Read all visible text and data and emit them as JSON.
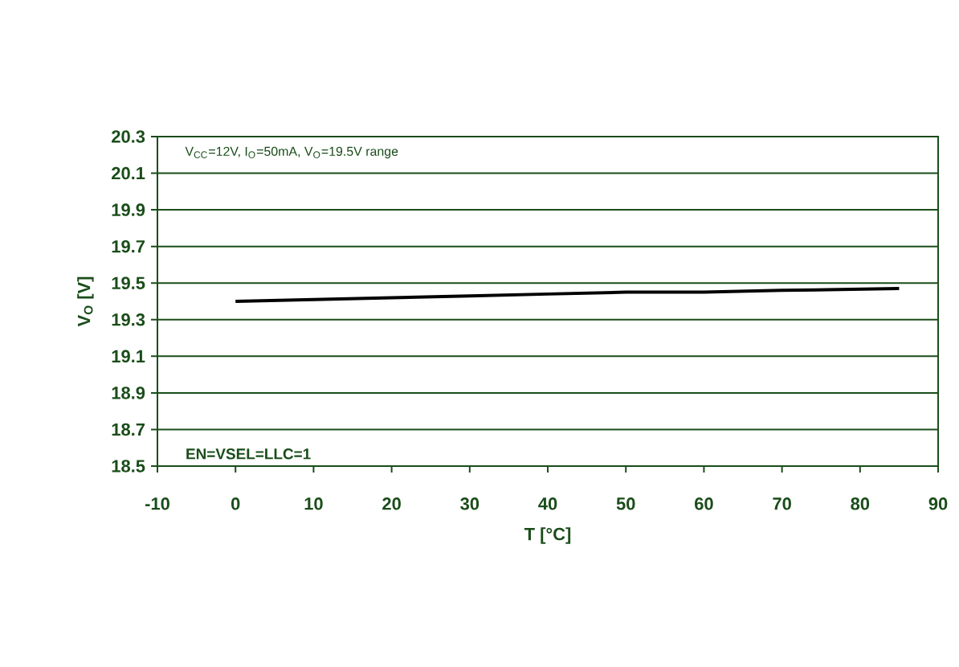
{
  "chart_data": {
    "type": "line",
    "xlabel": "T [°C]",
    "ylabel": "V$_{O}$ [V]",
    "x": [
      0,
      10,
      20,
      30,
      40,
      50,
      60,
      70,
      85
    ],
    "series": [
      {
        "color": "#000000",
        "values": [
          19.4,
          19.41,
          19.42,
          19.43,
          19.44,
          19.45,
          19.45,
          19.46,
          19.47
        ]
      }
    ],
    "xlim": [
      -10,
      90
    ],
    "xticks": [
      -10,
      0,
      10,
      20,
      30,
      40,
      50,
      60,
      70,
      80,
      90
    ],
    "ylim": [
      18.5,
      20.3
    ],
    "yticks": [
      18.5,
      18.7,
      18.9,
      19.1,
      19.3,
      19.5,
      19.7,
      19.9,
      20.1,
      20.3
    ],
    "grid": "y",
    "marker": "none",
    "line_style": "solid",
    "annotations": [
      "V$_{CC}$=12V, I$_{O}$=50mA, V$_{O}$=19.5V range",
      "EN=VSEL=LLC=1"
    ]
  }
}
